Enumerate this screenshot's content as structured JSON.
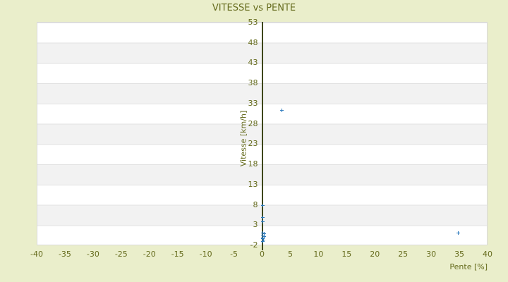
{
  "colors": {
    "background": "#eaeecb",
    "text": "#666c1e",
    "axis_line": "#3f481b",
    "marker": "#2e7bbe",
    "stripe_light": "#ffffff",
    "stripe_dark": "#f2f2f2",
    "plot_border": "#d9d9d9"
  },
  "chart_data": {
    "type": "scatter",
    "title": "VITESSE vs PENTE",
    "xlabel": "Pente [%]",
    "ylabel": "Vitesse [km/h]",
    "xlim": [
      -40,
      40
    ],
    "ylim": [
      -2,
      53
    ],
    "x_ticks": [
      -40,
      -35,
      -30,
      -25,
      -20,
      -15,
      -10,
      -5,
      0,
      5,
      10,
      15,
      20,
      25,
      30,
      35,
      40
    ],
    "y_ticks": [
      53,
      48,
      43,
      38,
      33,
      28,
      23,
      18,
      13,
      8,
      3,
      -2
    ],
    "grid": "horizontal-stripes",
    "legend": "none",
    "marker": "plus",
    "points": [
      {
        "x": 3.5,
        "y": 31.3
      },
      {
        "x": 34.7,
        "y": 0.9
      },
      {
        "x": 0,
        "y": 7.7
      },
      {
        "x": 0,
        "y": 4.8
      },
      {
        "x": 0,
        "y": 3.8
      },
      {
        "x": 0,
        "y": 1.0
      },
      {
        "x": 0.3,
        "y": 0.7
      },
      {
        "x": 0,
        "y": 0.4
      },
      {
        "x": 0.3,
        "y": 0.1
      },
      {
        "x": 0,
        "y": -0.2
      },
      {
        "x": 0,
        "y": -0.5
      },
      {
        "x": 0.2,
        "y": -0.8
      },
      {
        "x": 0,
        "y": -1.1
      }
    ]
  }
}
